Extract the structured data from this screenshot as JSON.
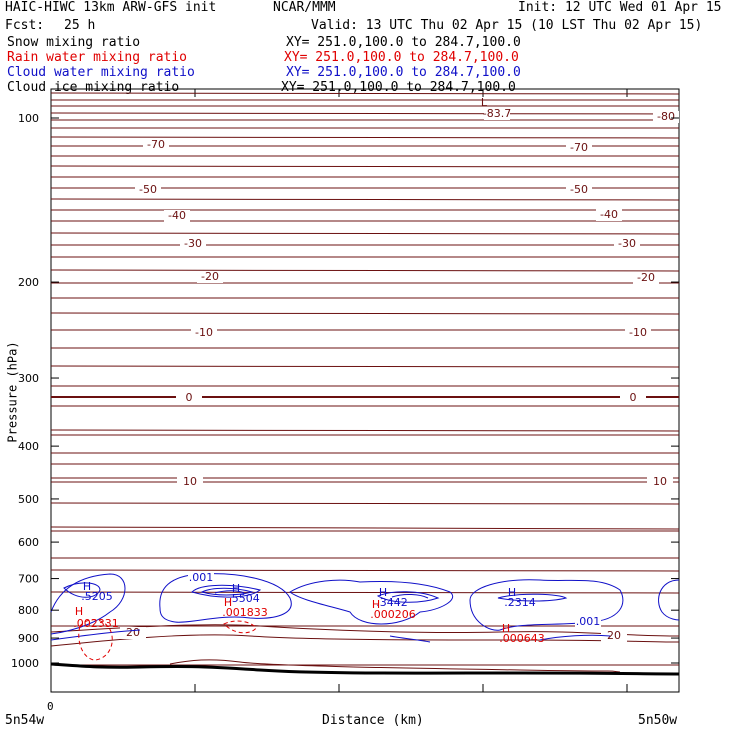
{
  "header": {
    "title": "HAIC-HIWC 13km ARW-GFS init",
    "org": "NCAR/MMM",
    "init": "Init: 12 UTC Wed 01 Apr 15",
    "fcst_label": "Fcst:",
    "fcst_value": "25 h",
    "valid": "Valid: 13 UTC Thu 02 Apr 15 (10 LST Thu 02 Apr 15)"
  },
  "legend": [
    {
      "name": "Snow mixing ratio",
      "xy": "XY= 251.0,100.0 to 284.7,100.0",
      "color": "#000000"
    },
    {
      "name": "Rain water mixing ratio",
      "xy": "XY= 251.0,100.0 to 284.7,100.0",
      "color": "#e00000"
    },
    {
      "name": "Cloud water mixing ratio",
      "xy": "XY= 251.0,100.0 to 284.7,100.0",
      "color": "#1010c8"
    },
    {
      "name": "Cloud ice mixing ratio",
      "xy": "XY= 251.0,100.0 to 284.7,100.0",
      "color": "#000000"
    }
  ],
  "chart_data": {
    "type": "line",
    "title": "HAIC-HIWC 13km ARW-GFS init",
    "xlabel": "Distance (km)",
    "ylabel": "Pressure (hPa)",
    "x_start_label": "0",
    "x_left_label": "5n54w",
    "x_right_label": "5n50w",
    "y_ticks": [
      100,
      200,
      300,
      400,
      500,
      600,
      700,
      800,
      900,
      1000
    ],
    "ylim": [
      1050,
      50
    ],
    "y_scale": "log",
    "temperature_labels_left": [
      "-70",
      "-50",
      "-40",
      "-30",
      "-20",
      "-10",
      "0",
      "10",
      "20"
    ],
    "temperature_labels_right": [
      "-80",
      "-70",
      "-50",
      "-40",
      "-30",
      "-20",
      "-10",
      "0",
      "10",
      "20"
    ],
    "temperature_low_marker": "L",
    "temperature_low_value": "-83.7",
    "cloud_water_contour_label": ".001",
    "cloud_water_maxima": [
      {
        "marker": "H",
        "value": ".5205"
      },
      {
        "marker": "H",
        "value": ".5504"
      },
      {
        "marker": "H",
        "value": ".3442"
      },
      {
        "marker": "H",
        "value": ".2314"
      }
    ],
    "rain_water_maxima": [
      {
        "marker": "H",
        "value": ".002331"
      },
      {
        "marker": "H",
        "value": ".001833"
      },
      {
        "marker": "H",
        "value": ".000206"
      },
      {
        "marker": "H",
        "value": ".000643"
      }
    ],
    "temperature_color": "#6b1010",
    "cloud_water_color": "#1010c8",
    "rain_water_color": "#e00000"
  }
}
